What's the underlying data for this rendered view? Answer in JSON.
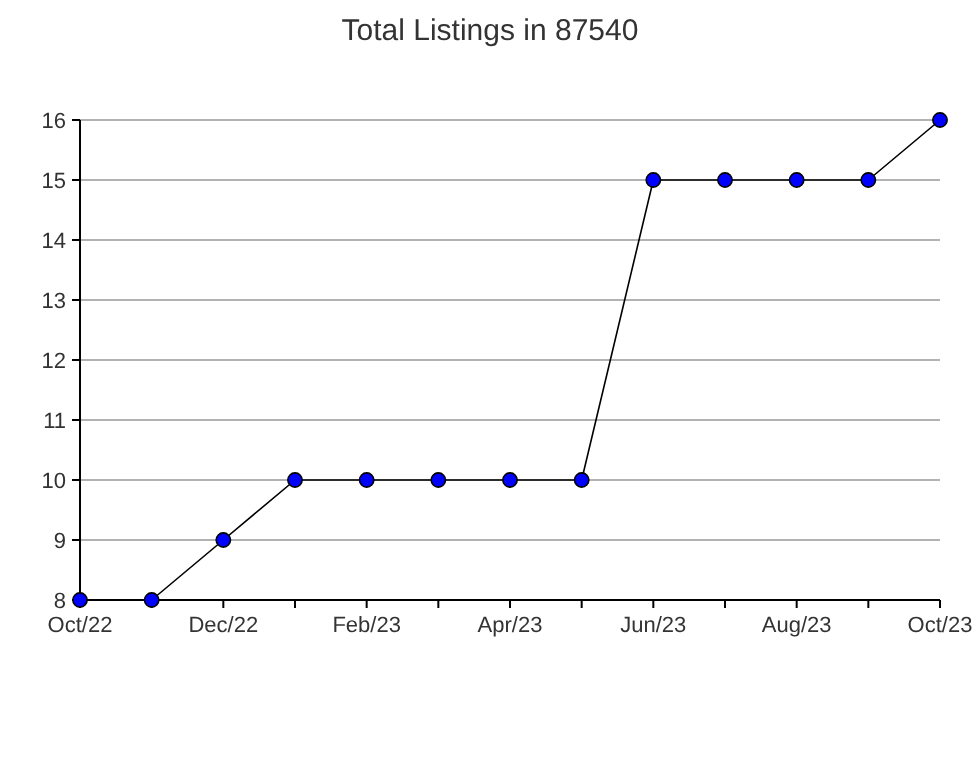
{
  "chart_data": {
    "type": "line",
    "title": "Total Listings in 87540",
    "categories": [
      "Oct/22",
      null,
      "Dec/22",
      null,
      "Feb/23",
      null,
      "Apr/23",
      null,
      "Jun/23",
      null,
      "Aug/23",
      null,
      "Oct/23"
    ],
    "series": [
      {
        "color": "#0000ff",
        "values": [
          8,
          8,
          9,
          10,
          10,
          10,
          10,
          10,
          15,
          15,
          15,
          15,
          16
        ]
      }
    ],
    "ylim": [
      8,
      16
    ],
    "yticks": [
      8,
      9,
      10,
      11,
      12,
      13,
      14,
      15,
      16
    ],
    "grid": "y",
    "marker": "circle"
  }
}
